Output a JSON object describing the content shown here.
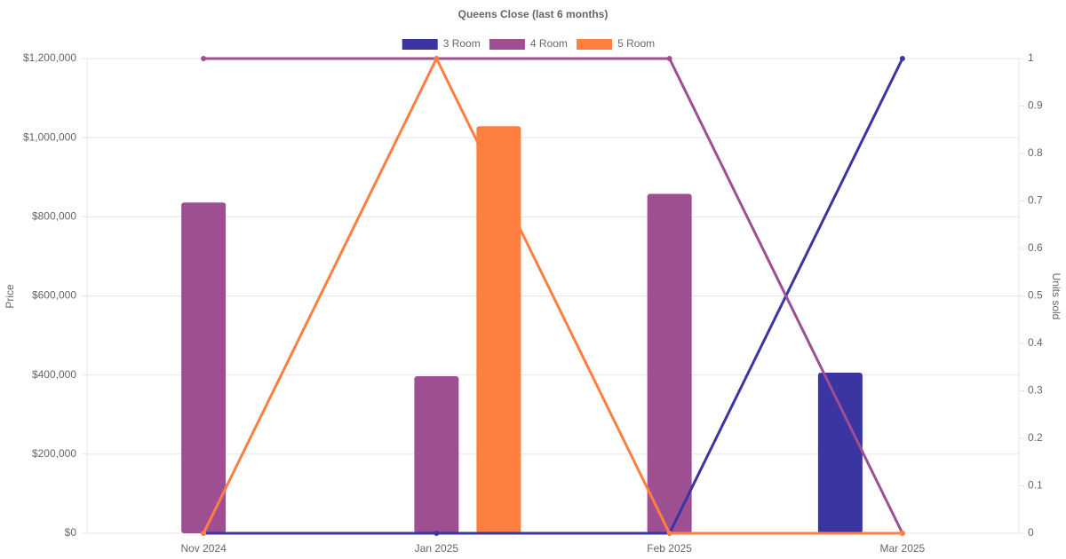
{
  "chart_data": {
    "type": "bar-line",
    "title": "Queens Close (last 6 months)",
    "categories": [
      "Nov 2024",
      "Jan 2025",
      "Feb 2025",
      "Mar 2025"
    ],
    "y_label": "Price",
    "y2_label": "Units sold",
    "series": [
      {
        "name": "3 Room",
        "color": "#3a35a0",
        "values": [
          null,
          null,
          null,
          406000
        ],
        "units": [
          0,
          0,
          0,
          1
        ]
      },
      {
        "name": "4 Room",
        "color": "#9e4f91",
        "values": [
          836000,
          397000,
          858000,
          null
        ],
        "units": [
          1,
          1,
          1,
          0
        ]
      },
      {
        "name": "5 Room",
        "color": "#ff7f40",
        "values": [
          null,
          1029000,
          null,
          null
        ],
        "units": [
          0,
          1,
          0,
          0
        ]
      }
    ],
    "ylim": [
      0,
      1200000
    ],
    "yticks": [
      {
        "value": 0,
        "label": "$0"
      },
      {
        "value": 200000,
        "label": "$200,000"
      },
      {
        "value": 400000,
        "label": "$400,000"
      },
      {
        "value": 600000,
        "label": "$600,000"
      },
      {
        "value": 800000,
        "label": "$800,000"
      },
      {
        "value": 1000000,
        "label": "$1,000,000"
      },
      {
        "value": 1200000,
        "label": "$1,200,000"
      }
    ],
    "y2lim": [
      0,
      1
    ],
    "y2ticks": [
      0,
      0.1,
      0.2,
      0.3,
      0.4,
      0.5,
      0.6,
      0.7,
      0.8,
      0.9,
      1
    ],
    "grid": true,
    "legend": "top"
  }
}
